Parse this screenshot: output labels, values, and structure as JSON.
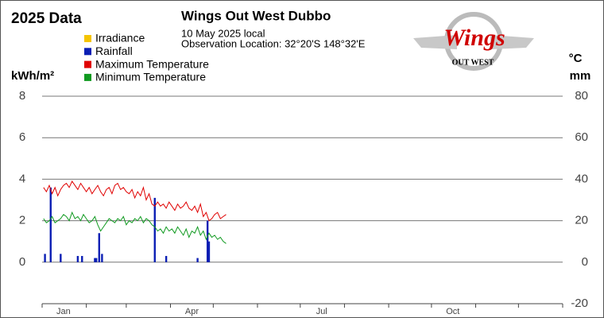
{
  "chart_data": {
    "type": "line",
    "heading": "2025 Data",
    "title": "Wings Out West Dubbo",
    "subtitle": [
      "10 May 2025 local",
      "Observation Location: 32°20'S 148°32'E"
    ],
    "logo": {
      "main": "Wings",
      "sub": "OUT WEST"
    },
    "ylabel": "kWh/m²",
    "y2label": [
      "°C",
      "mm"
    ],
    "xlim": [
      0,
      365
    ],
    "xticks": [
      {
        "value": 15,
        "label": "Jan"
      },
      {
        "value": 105,
        "label": "Apr"
      },
      {
        "value": 196,
        "label": "Jul"
      },
      {
        "value": 288,
        "label": "Oct"
      }
    ],
    "x_minor_ticks": [
      0,
      31,
      59,
      90,
      120,
      151,
      181,
      212,
      243,
      273,
      304,
      334,
      365
    ],
    "ylim": [
      -2,
      8
    ],
    "yticks": [
      0,
      2,
      4,
      6,
      8
    ],
    "y2lim": [
      -20,
      80
    ],
    "y2ticks": [
      -20,
      0,
      20,
      40,
      60,
      80
    ],
    "grid": true,
    "series": [
      {
        "name": "Irradiance",
        "color": "#f5c400",
        "axis": "y",
        "x": [],
        "values": []
      },
      {
        "name": "Rainfall",
        "color": "#0a1eb4",
        "axis": "y2",
        "type": "bar",
        "x": [
          2,
          6,
          13,
          25,
          28,
          37,
          38,
          40,
          42,
          79,
          87,
          109,
          116,
          117
        ],
        "values": [
          4,
          36,
          4,
          3,
          3,
          2,
          2,
          14,
          4,
          31,
          3,
          2,
          20,
          10
        ]
      },
      {
        "name": "Maximum Temperature",
        "color": "#e00000",
        "axis": "y2",
        "x": [
          1,
          3,
          5,
          7,
          9,
          11,
          13,
          15,
          17,
          19,
          21,
          23,
          25,
          27,
          29,
          31,
          33,
          35,
          37,
          39,
          41,
          43,
          45,
          47,
          49,
          51,
          53,
          55,
          57,
          59,
          61,
          63,
          65,
          67,
          69,
          71,
          73,
          75,
          77,
          79,
          81,
          83,
          85,
          87,
          89,
          91,
          93,
          95,
          97,
          99,
          101,
          103,
          105,
          107,
          109,
          111,
          113,
          115,
          117,
          119,
          121,
          123,
          125,
          127,
          129
        ],
        "values": [
          36,
          34,
          37,
          33,
          36,
          32,
          35,
          37,
          38,
          36,
          39,
          37,
          35,
          38,
          36,
          34,
          36,
          33,
          35,
          37,
          34,
          32,
          35,
          36,
          33,
          37,
          38,
          35,
          36,
          34,
          33,
          35,
          31,
          34,
          32,
          36,
          30,
          33,
          28,
          27,
          29,
          27,
          28,
          26,
          29,
          27,
          25,
          28,
          26,
          27,
          29,
          26,
          25,
          27,
          24,
          28,
          22,
          24,
          20,
          21,
          23,
          24,
          21,
          22,
          23
        ]
      },
      {
        "name": "Minimum Temperature",
        "color": "#109a20",
        "axis": "y2",
        "x": [
          1,
          3,
          5,
          7,
          9,
          11,
          13,
          15,
          17,
          19,
          21,
          23,
          25,
          27,
          29,
          31,
          33,
          35,
          37,
          39,
          41,
          43,
          45,
          47,
          49,
          51,
          53,
          55,
          57,
          59,
          61,
          63,
          65,
          67,
          69,
          71,
          73,
          75,
          77,
          79,
          81,
          83,
          85,
          87,
          89,
          91,
          93,
          95,
          97,
          99,
          101,
          103,
          105,
          107,
          109,
          111,
          113,
          115,
          117,
          119,
          121,
          123,
          125,
          127,
          129
        ],
        "values": [
          21,
          19,
          20,
          22,
          19,
          20,
          21,
          23,
          22,
          20,
          24,
          21,
          22,
          20,
          23,
          21,
          19,
          20,
          22,
          18,
          15,
          17,
          19,
          21,
          20,
          19,
          21,
          20,
          22,
          18,
          20,
          19,
          21,
          20,
          22,
          19,
          21,
          20,
          18,
          17,
          15,
          16,
          14,
          17,
          15,
          16,
          14,
          17,
          15,
          13,
          16,
          12,
          15,
          14,
          17,
          13,
          15,
          11,
          14,
          12,
          13,
          11,
          12,
          10,
          9
        ]
      }
    ]
  }
}
